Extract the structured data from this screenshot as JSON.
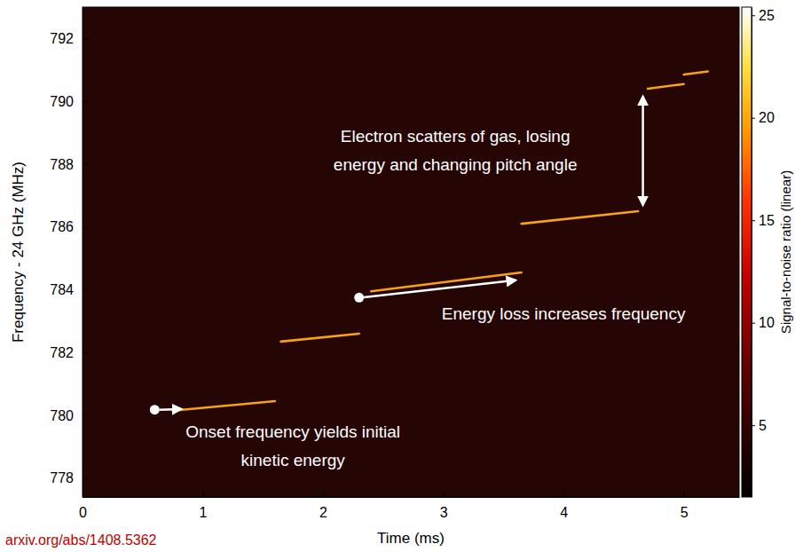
{
  "chart_data": {
    "type": "spectrogram",
    "xlabel": "Time (ms)",
    "ylabel": "Frequency - 24 GHz (MHz)",
    "xlim": [
      0,
      5.46
    ],
    "xticks": [
      0,
      1,
      2,
      3,
      4,
      5
    ],
    "ylim": [
      777.4,
      793
    ],
    "yticks": [
      778,
      780,
      782,
      784,
      786,
      788,
      790,
      792
    ],
    "color": "#f7a21b",
    "series": [
      {
        "x": [
          0.75,
          1.6
        ],
        "values": [
          780.15,
          780.45
        ]
      },
      {
        "x": [
          1.65,
          2.3
        ],
        "values": [
          782.35,
          782.6
        ]
      },
      {
        "x": [
          2.4,
          3.65
        ],
        "values": [
          783.95,
          784.55
        ]
      },
      {
        "x": [
          3.65,
          4.62
        ],
        "values": [
          786.1,
          786.5
        ]
      },
      {
        "x": [
          4.7,
          5.0
        ],
        "values": [
          790.4,
          790.55
        ]
      },
      {
        "x": [
          5.0,
          5.2
        ],
        "values": [
          790.85,
          790.95
        ]
      }
    ],
    "colorbar": {
      "label": "Signal-to-noise ratio (linear)",
      "range": [
        1.5,
        25.4
      ],
      "ticks": [
        5,
        10,
        15,
        20,
        25
      ]
    },
    "annotations": [
      {
        "lines": [
          "Onset frequency yields initial",
          "kinetic energy"
        ]
      },
      {
        "lines": [
          "Energy loss increases frequency"
        ]
      },
      {
        "lines": [
          "Electron scatters of gas, losing",
          "energy and changing pitch angle"
        ]
      }
    ],
    "source": "arxiv.org/abs/1408.5362"
  }
}
